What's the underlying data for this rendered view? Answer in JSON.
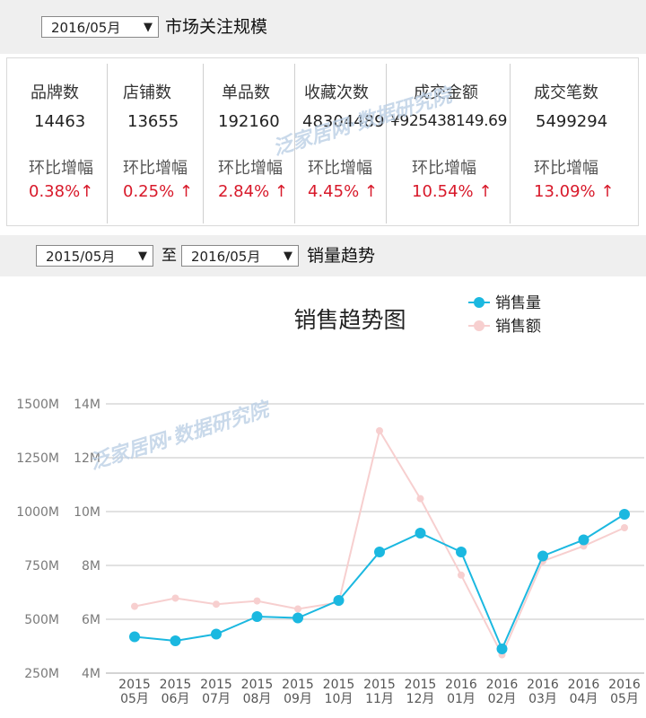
{
  "top_bar": {
    "date_select": "2016/05月",
    "title": "市场关注规模"
  },
  "stats": [
    {
      "label": "品牌数",
      "value": "14463",
      "change_label": "环比增幅",
      "change": "0.38%↑"
    },
    {
      "label": "店铺数",
      "value": "13655",
      "change_label": "环比增幅",
      "change": "0.25% ↑"
    },
    {
      "label": "单品数",
      "value": "192160",
      "change_label": "环比增幅",
      "change": "2.84% ↑"
    },
    {
      "label": "收藏次数",
      "value": "48304489",
      "change_label": "环比增幅",
      "change": "4.45% ↑"
    },
    {
      "label": "成交金额",
      "value": "¥925438149.69",
      "change_label": "环比增幅",
      "change": "10.54% ↑"
    },
    {
      "label": "成交笔数",
      "value": "5499294",
      "change_label": "环比增幅",
      "change": "13.09% ↑"
    }
  ],
  "trend_bar": {
    "start_select": "2015/05月",
    "connector": "至",
    "end_select": "2016/05月",
    "title": "销量趋势"
  },
  "watermark": "泛家居网·数据研究院",
  "colors": {
    "volume": "#1bb8e0",
    "amount": "#f7cfcf",
    "change": "#d8192a"
  },
  "chart_data": {
    "type": "line",
    "title": "销售趋势图",
    "categories": [
      [
        "2015",
        "05月"
      ],
      [
        "2015",
        "06月"
      ],
      [
        "2015",
        "07月"
      ],
      [
        "2015",
        "08月"
      ],
      [
        "2015",
        "09月"
      ],
      [
        "2015",
        "10月"
      ],
      [
        "2015",
        "11月"
      ],
      [
        "2015",
        "12月"
      ],
      [
        "2016",
        "01月"
      ],
      [
        "2016",
        "02月"
      ],
      [
        "2016",
        "03月"
      ],
      [
        "2016",
        "04月"
      ],
      [
        "2016",
        "05月"
      ]
    ],
    "left_axis": {
      "ticks": [
        "1500M",
        "1250M",
        "1000M",
        "750M",
        "500M",
        "250M"
      ],
      "range": [
        250,
        1500
      ],
      "unit": "M"
    },
    "right_axis": {
      "ticks": [
        "14M",
        "12M",
        "10M",
        "8M",
        "6M",
        "4M"
      ],
      "range": [
        4,
        14
      ],
      "unit": "M"
    },
    "legend_position": "top-right",
    "grid": true,
    "series": [
      {
        "name": "销售量",
        "axis": "right",
        "values": [
          5.35,
          5.2,
          5.45,
          6.1,
          6.05,
          6.7,
          8.5,
          9.2,
          8.5,
          4.9,
          8.35,
          8.95,
          9.9
        ]
      },
      {
        "name": "销售额",
        "axis": "left",
        "values": [
          560,
          598,
          570,
          585,
          548,
          578,
          1375,
          1060,
          705,
          335,
          770,
          840,
          925
        ]
      }
    ]
  }
}
